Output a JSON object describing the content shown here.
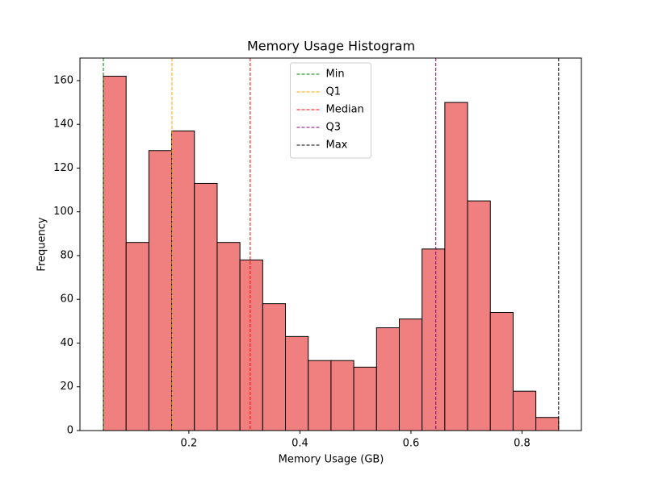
{
  "chart_data": {
    "type": "histogram",
    "title": "Memory Usage Histogram",
    "x_label": "Memory Usage (GB)",
    "y_label": "Frequency",
    "bins": [
      0.046,
      0.087,
      0.128,
      0.169,
      0.21,
      0.251,
      0.292,
      0.333,
      0.374,
      0.415,
      0.456,
      0.497,
      0.538,
      0.579,
      0.62,
      0.661,
      0.702,
      0.743,
      0.784,
      0.825,
      0.866
    ],
    "values": [
      162,
      86,
      128,
      137,
      113,
      86,
      78,
      58,
      43,
      32,
      32,
      29,
      47,
      51,
      83,
      150,
      105,
      54,
      18,
      6
    ],
    "color": "#f08080",
    "edgecolor": "#000000",
    "xlim": [
      0.0038,
      0.907
    ],
    "xticks": [
      0.2,
      0.4,
      0.6,
      0.8
    ],
    "ylim": [
      0,
      170.3
    ],
    "yticks": [
      0,
      20,
      40,
      60,
      80,
      100,
      120,
      140,
      160
    ],
    "reference_lines": [
      {
        "name": "Min",
        "color": "green",
        "value": 0.046
      },
      {
        "name": "Q1",
        "color": "orange",
        "value": 0.1695
      },
      {
        "name": "Median",
        "color": "red",
        "value": 0.3105
      },
      {
        "name": "Q3",
        "color": "purple",
        "value": 0.6448
      },
      {
        "name": "Max",
        "color": "black",
        "value": 0.866
      }
    ],
    "legend": "upper center"
  }
}
